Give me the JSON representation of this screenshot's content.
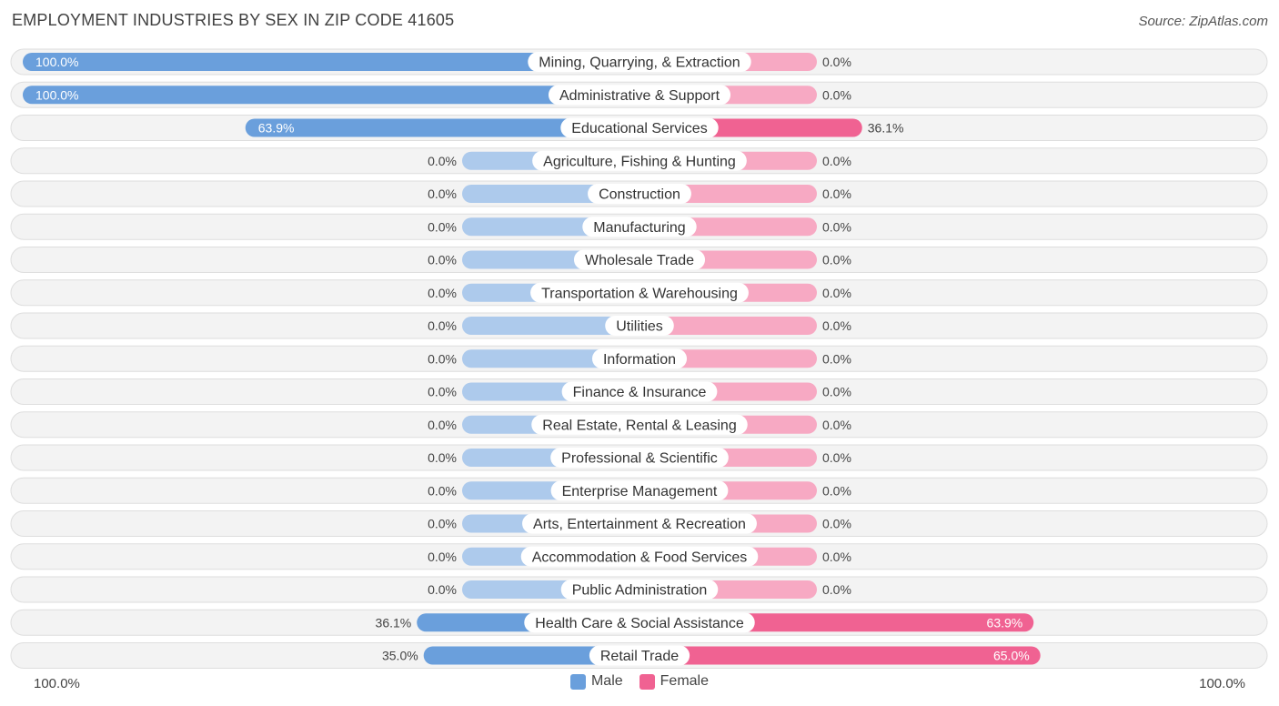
{
  "title": "EMPLOYMENT INDUSTRIES BY SEX IN ZIP CODE 41605",
  "source": "Source: ZipAtlas.com",
  "axis": {
    "left_label": "100.0%",
    "right_label": "100.0%"
  },
  "legend": {
    "male_label": "Male",
    "female_label": "Female",
    "male_color": "#6a9fdc",
    "female_color": "#f06292"
  },
  "chart_data": {
    "type": "bar",
    "orientation": "diverging-horizontal",
    "title": "EMPLOYMENT INDUSTRIES BY SEX IN ZIP CODE 41605",
    "xlim": [
      -100,
      100
    ],
    "categories": [
      "Mining, Quarrying, & Extraction",
      "Administrative & Support",
      "Educational Services",
      "Agriculture, Fishing & Hunting",
      "Construction",
      "Manufacturing",
      "Wholesale Trade",
      "Transportation & Warehousing",
      "Utilities",
      "Information",
      "Finance & Insurance",
      "Real Estate, Rental & Leasing",
      "Professional & Scientific",
      "Enterprise Management",
      "Arts, Entertainment & Recreation",
      "Accommodation & Food Services",
      "Public Administration",
      "Health Care & Social Assistance",
      "Retail Trade"
    ],
    "series": [
      {
        "name": "Male",
        "color": "#6a9fdc",
        "values": [
          100.0,
          100.0,
          63.9,
          0.0,
          0.0,
          0.0,
          0.0,
          0.0,
          0.0,
          0.0,
          0.0,
          0.0,
          0.0,
          0.0,
          0.0,
          0.0,
          0.0,
          36.1,
          35.0
        ],
        "labels": [
          "100.0%",
          "100.0%",
          "63.9%",
          "0.0%",
          "0.0%",
          "0.0%",
          "0.0%",
          "0.0%",
          "0.0%",
          "0.0%",
          "0.0%",
          "0.0%",
          "0.0%",
          "0.0%",
          "0.0%",
          "0.0%",
          "0.0%",
          "36.1%",
          "35.0%"
        ]
      },
      {
        "name": "Female",
        "color": "#f06292",
        "values": [
          0.0,
          0.0,
          36.1,
          0.0,
          0.0,
          0.0,
          0.0,
          0.0,
          0.0,
          0.0,
          0.0,
          0.0,
          0.0,
          0.0,
          0.0,
          0.0,
          0.0,
          63.9,
          65.0
        ],
        "labels": [
          "0.0%",
          "0.0%",
          "36.1%",
          "0.0%",
          "0.0%",
          "0.0%",
          "0.0%",
          "0.0%",
          "0.0%",
          "0.0%",
          "0.0%",
          "0.0%",
          "0.0%",
          "0.0%",
          "0.0%",
          "0.0%",
          "0.0%",
          "63.9%",
          "65.0%"
        ]
      }
    ],
    "legend_position": "bottom-center"
  }
}
